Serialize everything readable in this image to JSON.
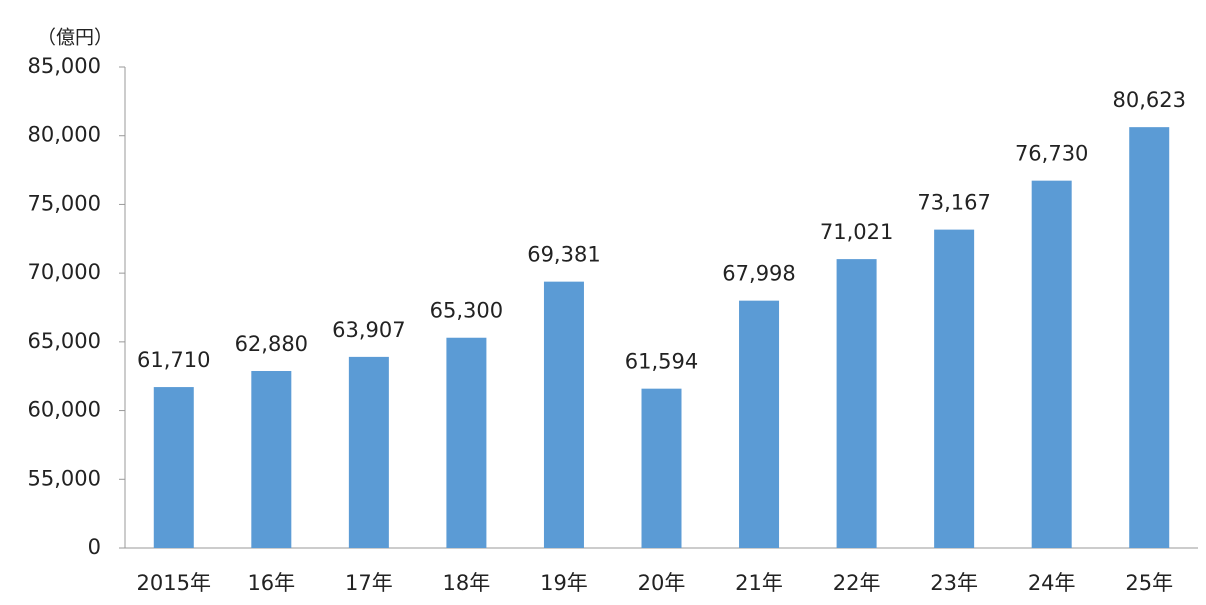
{
  "chart_data": {
    "type": "bar",
    "unit_label": "（億円）",
    "categories": [
      "2015年",
      "16年",
      "17年",
      "18年",
      "19年",
      "20年",
      "21年",
      "22年",
      "23年",
      "24年",
      "25年"
    ],
    "values": [
      61710,
      62880,
      63907,
      65300,
      69381,
      61594,
      67998,
      71021,
      73167,
      76730,
      80623
    ],
    "value_labels": [
      "61,710",
      "62,880",
      "63,907",
      "65,300",
      "69,381",
      "61,594",
      "67,998",
      "71,021",
      "73,167",
      "76,730",
      "80,623"
    ],
    "color": "#5b9bd5",
    "ylim": [
      50000,
      85000
    ],
    "axis_break": true,
    "yticks": [
      0,
      {
        "value": 55000,
        "label": "55,000"
      },
      {
        "value": 60000,
        "label": "60,000"
      },
      {
        "value": 65000,
        "label": "65,000"
      },
      {
        "value": 70000,
        "label": "70,000"
      },
      {
        "value": 75000,
        "label": "75,000"
      },
      {
        "value": 80000,
        "label": "80,000"
      },
      {
        "value": 85000,
        "label": "85,000"
      }
    ],
    "grid": false
  }
}
